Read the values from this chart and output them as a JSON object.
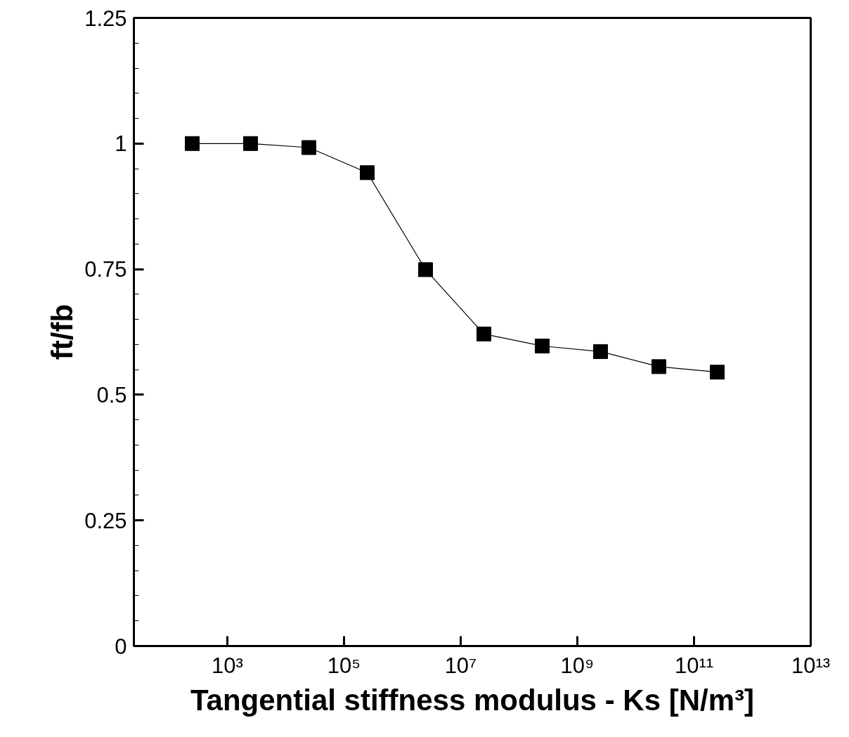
{
  "chart_data": {
    "type": "line",
    "xlabel": "Tangential stiffness modulus - Ks [N/m³]",
    "ylabel": "ft/fb",
    "x": [
      250,
      2500,
      25000,
      250000,
      2500000,
      25000000,
      250000000,
      2500000000,
      25000000000,
      250000000000
    ],
    "series": [
      {
        "color": "#000000",
        "values": [
          1.0,
          1.0,
          0.992,
          0.942,
          0.749,
          0.621,
          0.597,
          0.586,
          0.556,
          0.545
        ]
      }
    ],
    "log": "x",
    "marker": "square",
    "line_style": "solid",
    "xlim": [
      25,
      10000000000000
    ],
    "xticks": [
      {
        "value": 1000,
        "label": "10³"
      },
      {
        "value": 100000,
        "label": "10⁵"
      },
      {
        "value": 10000000,
        "label": "10⁷"
      },
      {
        "value": 1000000000,
        "label": "10⁹"
      },
      {
        "value": 100000000000,
        "label": "10¹¹"
      },
      {
        "value": 10000000000000,
        "label": "10¹³"
      }
    ],
    "ylim": [
      0,
      1.25
    ],
    "yticks": [
      0,
      {
        "value": 0.05,
        "label": null
      },
      {
        "value": 0.1,
        "label": null
      },
      {
        "value": 0.15,
        "label": null
      },
      {
        "value": 0.2,
        "label": null
      },
      0.25,
      {
        "value": 0.3,
        "label": null
      },
      {
        "value": 0.35,
        "label": null
      },
      {
        "value": 0.4,
        "label": null
      },
      {
        "value": 0.45,
        "label": null
      },
      0.5,
      {
        "value": 0.55,
        "label": null
      },
      {
        "value": 0.6,
        "label": null
      },
      {
        "value": 0.65,
        "label": null
      },
      {
        "value": 0.7,
        "label": null
      },
      0.75,
      {
        "value": 0.8,
        "label": null
      },
      {
        "value": 0.85,
        "label": null
      },
      {
        "value": 0.9,
        "label": null
      },
      {
        "value": 0.95,
        "label": null
      },
      1,
      {
        "value": 1.05,
        "label": null
      },
      {
        "value": 1.1,
        "label": null
      },
      {
        "value": 1.15,
        "label": null
      },
      {
        "value": 1.2,
        "label": null
      },
      1.25
    ]
  }
}
